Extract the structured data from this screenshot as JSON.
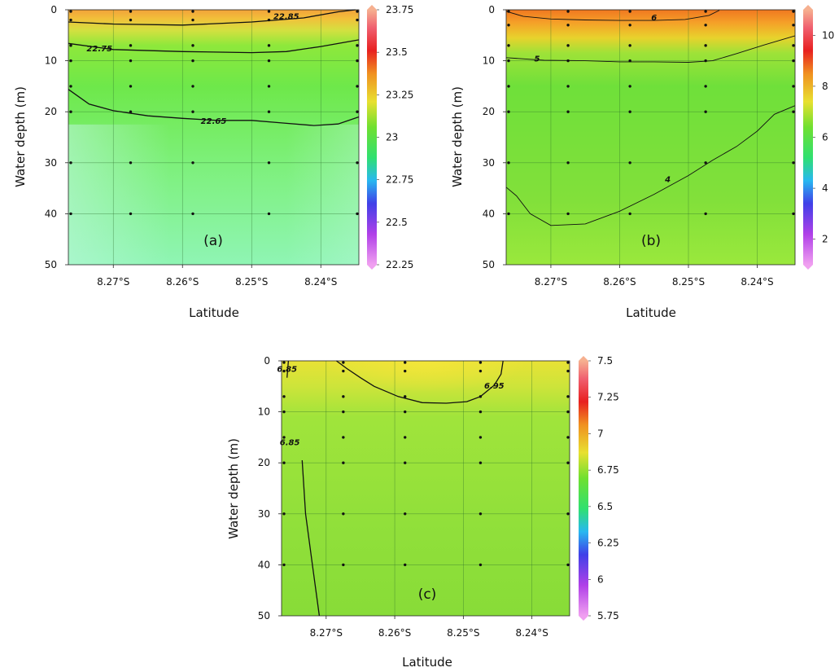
{
  "chart_data": [
    {
      "type": "heatmap",
      "panel_label": "(a)",
      "xlabel": "Latitude",
      "ylabel": "Water depth (m)",
      "x_ticks": [
        "8.27°S",
        "8.26°S",
        "8.25°S",
        "8.24°S"
      ],
      "x_tick_values": [
        8.27,
        8.26,
        8.25,
        8.24
      ],
      "xlim": [
        8.2765,
        8.2345
      ],
      "y_ticks": [
        "0",
        "10",
        "20",
        "30",
        "40",
        "50"
      ],
      "y_tick_values": [
        0,
        10,
        20,
        30,
        40,
        50
      ],
      "ylim": [
        0,
        50
      ],
      "y_inverted": true,
      "colorbar": {
        "ticks": [
          "22.25",
          "22.5",
          "22.75",
          "23",
          "23.25",
          "23.5",
          "23.75"
        ],
        "min": 22.25,
        "max": 23.75
      },
      "sample_x": [
        8.2765,
        8.2675,
        8.2585,
        8.2475,
        8.2345
      ],
      "sample_depths": [
        0,
        2,
        7,
        10,
        15,
        20,
        30,
        40
      ],
      "contours": [
        {
          "label": "22.85",
          "points": [
            [
              8.2765,
              2.4
            ],
            [
              8.27,
              2.8
            ],
            [
              8.26,
              3.0
            ],
            [
              8.25,
              2.4
            ],
            [
              8.2425,
              1.6
            ],
            [
              8.2375,
              0.4
            ],
            [
              8.235,
              0
            ]
          ]
        },
        {
          "label": "22.75",
          "points": [
            [
              8.2765,
              6.6
            ],
            [
              8.27,
              7.8
            ],
            [
              8.26,
              8.2
            ],
            [
              8.25,
              8.4
            ],
            [
              8.245,
              8.2
            ],
            [
              8.24,
              7.2
            ],
            [
              8.2345,
              5.9
            ]
          ]
        },
        {
          "label": "22.65",
          "points": [
            [
              8.2765,
              15.6
            ],
            [
              8.2735,
              18.5
            ],
            [
              8.27,
              19.8
            ],
            [
              8.265,
              20.8
            ],
            [
              8.26,
              21.3
            ],
            [
              8.255,
              21.7
            ],
            [
              8.25,
              21.7
            ],
            [
              8.2455,
              22.2
            ],
            [
              8.241,
              22.7
            ],
            [
              8.2375,
              22.4
            ],
            [
              8.2345,
              21.0
            ]
          ]
        }
      ],
      "contour_label_positions": [
        [
          8.245,
          1.3
        ],
        [
          8.272,
          7.6
        ],
        [
          8.2555,
          21.8
        ]
      ],
      "color_regime": "orange near surface (23.1–23.3) grading to green (22.7–22.8) mid-depth and pale cyan-green (~22.55) at 50 m in the west"
    },
    {
      "type": "heatmap",
      "panel_label": "(b)",
      "xlabel": "Latitude",
      "ylabel": "Water depth (m)",
      "x_ticks": [
        "8.27°S",
        "8.26°S",
        "8.25°S",
        "8.24°S"
      ],
      "x_tick_values": [
        8.27,
        8.26,
        8.25,
        8.24
      ],
      "xlim": [
        8.2765,
        8.2345
      ],
      "y_ticks": [
        "0",
        "10",
        "20",
        "30",
        "40",
        "50"
      ],
      "y_tick_values": [
        0,
        10,
        20,
        30,
        40,
        50
      ],
      "ylim": [
        0,
        50
      ],
      "y_inverted": true,
      "colorbar": {
        "ticks": [
          "2",
          "4",
          "6",
          "8",
          "10"
        ],
        "min": 1,
        "max": 11
      },
      "sample_x": [
        8.2765,
        8.2675,
        8.2585,
        8.2475,
        8.2345
      ],
      "sample_depths": [
        0,
        3,
        7,
        10,
        15,
        20,
        30,
        40
      ],
      "contours": [
        {
          "label": "6",
          "points": [
            [
              8.2765,
              0.3
            ],
            [
              8.274,
              1.3
            ],
            [
              8.27,
              1.8
            ],
            [
              8.265,
              2.0
            ],
            [
              8.26,
              2.1
            ],
            [
              8.255,
              2.1
            ],
            [
              8.2505,
              1.9
            ],
            [
              8.247,
              1.1
            ],
            [
              8.2455,
              0.1
            ]
          ]
        },
        {
          "label": "5",
          "points": [
            [
              8.2765,
              9.4
            ],
            [
              8.271,
              9.9
            ],
            [
              8.265,
              10.0
            ],
            [
              8.26,
              10.2
            ],
            [
              8.255,
              10.2
            ],
            [
              8.25,
              10.3
            ],
            [
              8.2465,
              10.0
            ],
            [
              8.243,
              8.6
            ],
            [
              8.239,
              6.9
            ],
            [
              8.2345,
              5.1
            ]
          ]
        },
        {
          "label": "4",
          "points": [
            [
              8.2765,
              34.8
            ],
            [
              8.275,
              36.5
            ],
            [
              8.273,
              40.0
            ],
            [
              8.27,
              42.3
            ],
            [
              8.265,
              42.0
            ],
            [
              8.26,
              39.5
            ],
            [
              8.255,
              36.2
            ],
            [
              8.25,
              32.5
            ],
            [
              8.2465,
              29.5
            ],
            [
              8.243,
              26.8
            ],
            [
              8.24,
              23.8
            ],
            [
              8.2375,
              20.5
            ],
            [
              8.2345,
              18.8
            ]
          ]
        }
      ],
      "contour_label_positions": [
        [
          8.255,
          1.5
        ],
        [
          8.272,
          9.6
        ],
        [
          8.253,
          33.2
        ]
      ],
      "color_regime": "orange-red near surface (~6–7), orange–yellow 3–8 m, green (~4–4.8) below, yellow-green at depth in the west"
    },
    {
      "type": "heatmap",
      "panel_label": "(c)",
      "xlabel": "Latitude",
      "ylabel": "Water depth (m)",
      "x_ticks": [
        "8.27°S",
        "8.26°S",
        "8.25°S",
        "8.24°S"
      ],
      "x_tick_values": [
        8.27,
        8.26,
        8.25,
        8.24
      ],
      "xlim": [
        8.2765,
        8.2345
      ],
      "y_ticks": [
        "0",
        "10",
        "20",
        "30",
        "40",
        "50"
      ],
      "y_tick_values": [
        0,
        10,
        20,
        30,
        40,
        50
      ],
      "ylim": [
        0,
        50
      ],
      "y_inverted": true,
      "colorbar": {
        "ticks": [
          "5.75",
          "6",
          "6.25",
          "6.5",
          "6.75",
          "7",
          "7.25",
          "7.5"
        ],
        "min": 5.75,
        "max": 7.5
      },
      "sample_x": [
        8.2765,
        8.2675,
        8.2585,
        8.2475,
        8.2345
      ],
      "sample_depths": [
        0,
        2,
        7,
        10,
        15,
        20,
        30,
        40
      ],
      "contours": [
        {
          "label": "6.95",
          "points": [
            [
              8.2685,
              0
            ],
            [
              8.267,
              1.5
            ],
            [
              8.265,
              3.3
            ],
            [
              8.263,
              5.0
            ],
            [
              8.2595,
              7.0
            ],
            [
              8.256,
              8.2
            ],
            [
              8.2525,
              8.3
            ],
            [
              8.2495,
              8.0
            ],
            [
              8.2475,
              7.0
            ],
            [
              8.2455,
              4.8
            ],
            [
              8.2445,
              2.6
            ],
            [
              8.2442,
              0
            ]
          ]
        },
        {
          "label": "6.85",
          "points": [
            [
              8.2755,
              0
            ],
            [
              8.2757,
              3.3
            ]
          ]
        },
        {
          "label": "6.85",
          "points": [
            [
              8.2735,
              19.5
            ],
            [
              8.273,
              30.0
            ],
            [
              8.272,
              40.0
            ],
            [
              8.271,
              50.0
            ]
          ]
        }
      ],
      "contour_label_positions": [
        [
          8.2455,
          4.9
        ],
        [
          8.2757,
          1.6
        ],
        [
          8.2753,
          16.0
        ]
      ],
      "color_regime": "yellow (~6.95–7.0) near surface in the middle, green (~6.8–6.9) elsewhere"
    }
  ]
}
